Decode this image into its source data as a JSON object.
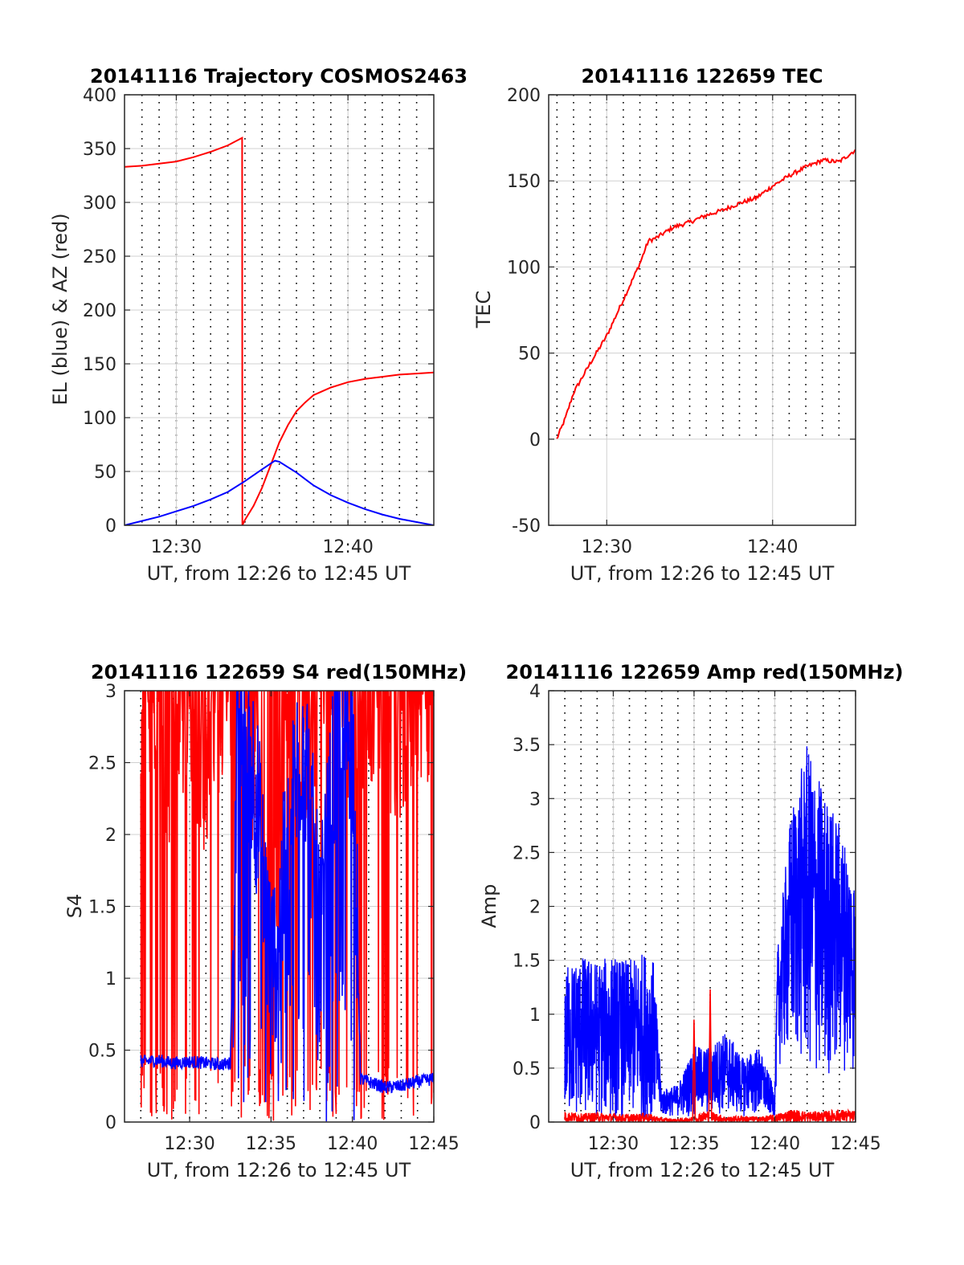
{
  "figure": {
    "background": "#ffffff"
  },
  "colors": {
    "az": "#ff0000",
    "el": "#0000ff",
    "tec": "#ff0000",
    "red": "#ff0000",
    "blue": "#0000ff",
    "grid": "#d0d0d0",
    "axis": "#262626"
  },
  "chart_data": [
    {
      "id": "trajectory",
      "type": "line",
      "title": "20141116 Trajectory COSMOS2463",
      "xlabel": "UT, from 12:26 to 12:45 UT",
      "ylabel": "EL (blue) & AZ (red)",
      "xlim": [
        "12:26:59",
        "12:45:00"
      ],
      "ylim": [
        0,
        400
      ],
      "xticks": [
        "12:30",
        "12:40"
      ],
      "yticks": [
        "0",
        "50",
        "100",
        "150",
        "200",
        "250",
        "300",
        "350",
        "400"
      ],
      "grid": true,
      "minor_vertical_grid": "dotted, every 1 minute",
      "series": [
        {
          "color": "red",
          "x": [
            "12:26:59",
            "12:28",
            "12:29",
            "12:30",
            "12:31",
            "12:32",
            "12:33",
            "12:33:50",
            "12:33:51",
            "12:34",
            "12:34:30",
            "12:35",
            "12:35:30",
            "12:36",
            "12:36:30",
            "12:37",
            "12:37:30",
            "12:38",
            "12:39",
            "12:40",
            "12:41",
            "12:42",
            "12:43",
            "12:44",
            "12:45"
          ],
          "y": [
            333,
            334,
            336,
            338,
            342,
            347,
            353,
            360,
            0,
            5,
            18,
            35,
            56,
            77,
            93,
            106,
            114,
            121,
            128,
            133,
            136,
            138,
            140,
            141,
            142
          ]
        },
        {
          "color": "blue",
          "x": [
            "12:26:59",
            "12:28",
            "12:29",
            "12:30",
            "12:31",
            "12:32",
            "12:33",
            "12:34",
            "12:35",
            "12:35:45",
            "12:36",
            "12:37",
            "12:38",
            "12:39",
            "12:40",
            "12:41",
            "12:42",
            "12:43",
            "12:44",
            "12:45"
          ],
          "y": [
            0,
            4,
            8,
            13,
            18,
            24,
            31,
            41,
            52,
            60,
            59,
            49,
            37,
            28,
            21,
            15,
            10,
            6,
            3,
            0
          ]
        }
      ]
    },
    {
      "id": "tec",
      "type": "line",
      "title": "20141116 122659 TEC",
      "xlabel": "UT, from 12:26 to 12:45 UT",
      "ylabel": "TEC",
      "xlim": [
        "12:26:30",
        "12:45:00"
      ],
      "ylim": [
        -50,
        200
      ],
      "xticks": [
        "12:30",
        "12:40"
      ],
      "yticks": [
        "-50",
        "0",
        "50",
        "100",
        "150",
        "200"
      ],
      "grid": true,
      "minor_vertical_grid": "dotted, every 1 minute, upper region",
      "series": [
        {
          "color": "red",
          "x": [
            "12:26:59",
            "12:27:30",
            "12:28",
            "12:29",
            "12:30",
            "12:31",
            "12:32",
            "12:32:30",
            "12:33",
            "12:34",
            "12:35",
            "12:36",
            "12:37",
            "12:38",
            "12:39",
            "12:40",
            "12:41",
            "12:42",
            "12:43",
            "12:44",
            "12:45"
          ],
          "y": [
            0,
            12,
            27,
            44,
            60,
            81,
            102,
            115,
            117,
            123,
            126,
            130,
            133,
            137,
            140,
            147,
            153,
            158,
            162,
            161,
            168
          ]
        }
      ]
    },
    {
      "id": "s4",
      "type": "line",
      "title": "20141116 122659 S4 red(150MHz)",
      "xlabel": "UT, from 12:26 to 12:45 UT",
      "ylabel": "S4",
      "xlim": [
        "12:26:00",
        "12:45:00"
      ],
      "ylim": [
        0,
        3
      ],
      "xticks": [
        "12:30",
        "12:35",
        "12:40",
        "12:45"
      ],
      "yticks": [
        "0",
        "0.5",
        "1",
        "1.5",
        "2",
        "2.5",
        "3"
      ],
      "grid": true,
      "series": [
        {
          "color": "red",
          "style": "noisy, frequently saturating at 3 with drops to 0",
          "x": [
            "12:27:00",
            "12:28",
            "12:29",
            "12:30",
            "12:31",
            "12:32",
            "12:33",
            "12:34",
            "12:35",
            "12:36",
            "12:37",
            "12:38",
            "12:39",
            "12:40",
            "12:41",
            "12:42",
            "12:43",
            "12:44",
            "12:45"
          ],
          "y": [
            2.8,
            2.6,
            2.5,
            2.9,
            2.4,
            3.0,
            2.7,
            2.5,
            1.0,
            2.8,
            2.6,
            3.0,
            2.9,
            2.7,
            3.0,
            2.8,
            2.6,
            3.0,
            2.9
          ]
        },
        {
          "color": "blue",
          "x": [
            "12:27:00",
            "12:28",
            "12:29",
            "12:30",
            "12:31",
            "12:32",
            "12:32:30",
            "12:33",
            "12:34",
            "12:35",
            "12:36",
            "12:37",
            "12:38",
            "12:39",
            "12:40",
            "12:40:30",
            "12:41",
            "12:42",
            "12:43",
            "12:44",
            "12:45"
          ],
          "y": [
            0.42,
            0.43,
            0.41,
            0.42,
            0.41,
            0.4,
            0.41,
            2.9,
            2.4,
            1.0,
            1.8,
            2.8,
            1.2,
            2.6,
            2.8,
            0.3,
            0.28,
            0.24,
            0.25,
            0.28,
            0.3
          ]
        }
      ]
    },
    {
      "id": "amp",
      "type": "line",
      "title": "20141116 122659 Amp red(150MHz)",
      "xlabel": "UT, from 12:26 to 12:45 UT",
      "ylabel": "Amp",
      "xlim": [
        "12:26:00",
        "12:45:00"
      ],
      "ylim": [
        0,
        4
      ],
      "xticks": [
        "12:30",
        "12:35",
        "12:40",
        "12:45"
      ],
      "yticks": [
        "0",
        "0.5",
        "1",
        "1.5",
        "2",
        "2.5",
        "3",
        "3.5",
        "4"
      ],
      "grid": true,
      "minor_vertical_grid": "dotted, every 1 minute",
      "series": [
        {
          "color": "blue",
          "style": "dense noisy band (min-max envelope)",
          "x": [
            "12:27:00",
            "12:28",
            "12:29",
            "12:30",
            "12:31",
            "12:32",
            "12:32:30",
            "12:33",
            "12:34",
            "12:35",
            "12:36",
            "12:37",
            "12:38",
            "12:39",
            "12:40",
            "12:40:10",
            "12:41",
            "12:42",
            "12:43",
            "12:44",
            "12:45"
          ],
          "ymin": [
            0,
            0,
            0,
            0,
            0,
            0,
            0,
            0.05,
            0.05,
            0.05,
            0.05,
            0.08,
            0.05,
            0.05,
            0.05,
            0.5,
            0.6,
            0.4,
            0.3,
            0.5,
            0.4
          ],
          "ymax": [
            1.45,
            1.55,
            1.5,
            1.55,
            1.5,
            1.6,
            1.5,
            0.3,
            0.35,
            0.7,
            0.7,
            0.85,
            0.6,
            0.7,
            0.3,
            1.6,
            2.9,
            3.5,
            3.1,
            2.8,
            2.3
          ]
        },
        {
          "color": "red",
          "style": "low noise floor with spikes",
          "x": [
            "12:27:00",
            "12:28",
            "12:29",
            "12:30",
            "12:31",
            "12:32",
            "12:33",
            "12:34",
            "12:34:55",
            "12:35",
            "12:35:05",
            "12:35:30",
            "12:35:55",
            "12:36",
            "12:36:05",
            "12:37",
            "12:38",
            "12:39",
            "12:40",
            "12:41",
            "12:42",
            "12:43",
            "12:44",
            "12:45"
          ],
          "y": [
            0.1,
            0.08,
            0.09,
            0.08,
            0.07,
            0.09,
            0.04,
            0.03,
            0.05,
            0.95,
            0.05,
            0.1,
            0.1,
            1.23,
            0.1,
            0.05,
            0.06,
            0.05,
            0.07,
            0.12,
            0.1,
            0.1,
            0.12,
            0.1
          ]
        }
      ]
    }
  ]
}
